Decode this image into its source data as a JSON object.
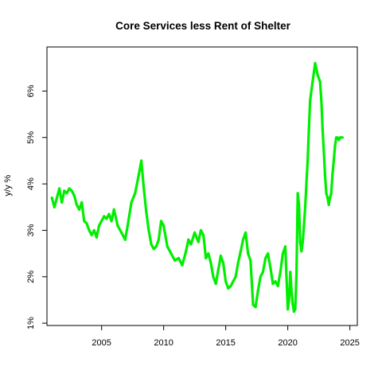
{
  "chart_data": {
    "type": "line",
    "title": "Core Services less Rent of Shelter",
    "xlabel": "",
    "ylabel": "y/y %",
    "xlim": [
      2000.6,
      2025.6
    ],
    "ylim": [
      0.95,
      6.95
    ],
    "x_ticks": [
      2005,
      2010,
      2015,
      2020,
      2025
    ],
    "x_tick_labels": [
      "2005",
      "2010",
      "2015",
      "2020",
      "2025"
    ],
    "y_ticks": [
      1,
      2,
      3,
      4,
      5,
      6
    ],
    "y_tick_labels": [
      "1%",
      "2%",
      "3%",
      "4%",
      "5%",
      "6%"
    ],
    "grid": false,
    "legend": "none",
    "colors": {
      "line": "#00ee00",
      "frame": "#000000"
    },
    "series": [
      {
        "x": [
          2001.0,
          2001.2,
          2001.4,
          2001.6,
          2001.8,
          2002.0,
          2002.2,
          2002.4,
          2002.6,
          2002.8,
          2003.0,
          2003.2,
          2003.4,
          2003.6,
          2003.8,
          2004.0,
          2004.2,
          2004.4,
          2004.6,
          2004.8,
          2005.0,
          2005.2,
          2005.4,
          2005.6,
          2005.8,
          2006.0,
          2006.3,
          2006.6,
          2006.9,
          2007.1,
          2007.4,
          2007.7,
          2008.0,
          2008.2,
          2008.4,
          2008.6,
          2008.8,
          2009.0,
          2009.2,
          2009.4,
          2009.6,
          2009.8,
          2010.0,
          2010.3,
          2010.6,
          2010.9,
          2011.2,
          2011.5,
          2011.8,
          2012.0,
          2012.2,
          2012.5,
          2012.8,
          2013.0,
          2013.2,
          2013.4,
          2013.6,
          2013.8,
          2014.0,
          2014.2,
          2014.4,
          2014.6,
          2014.8,
          2015.0,
          2015.2,
          2015.4,
          2015.6,
          2015.8,
          2016.0,
          2016.2,
          2016.4,
          2016.6,
          2016.8,
          2017.0,
          2017.2,
          2017.4,
          2017.6,
          2017.8,
          2018.0,
          2018.2,
          2018.4,
          2018.6,
          2018.8,
          2019.0,
          2019.2,
          2019.4,
          2019.6,
          2019.8,
          2020.0,
          2020.1,
          2020.2,
          2020.3,
          2020.4,
          2020.5,
          2020.6,
          2020.7,
          2020.8,
          2020.9,
          2021.0,
          2021.1,
          2021.2,
          2021.3,
          2021.4,
          2021.5,
          2021.6,
          2021.7,
          2021.8,
          2022.0,
          2022.2,
          2022.4,
          2022.6,
          2022.7,
          2022.8,
          2022.9,
          2023.0,
          2023.1,
          2023.2,
          2023.3,
          2023.4,
          2023.5,
          2023.6,
          2023.7,
          2023.8,
          2023.9,
          2024.0,
          2024.1,
          2024.2,
          2024.3,
          2024.4
        ],
        "y": [
          3.7,
          3.5,
          3.7,
          3.9,
          3.6,
          3.85,
          3.8,
          3.9,
          3.85,
          3.75,
          3.55,
          3.45,
          3.6,
          3.2,
          3.15,
          3.0,
          2.9,
          3.0,
          2.85,
          3.1,
          3.2,
          3.3,
          3.25,
          3.35,
          3.2,
          3.45,
          3.1,
          2.95,
          2.8,
          3.1,
          3.6,
          3.8,
          4.2,
          4.5,
          3.9,
          3.4,
          3.0,
          2.7,
          2.6,
          2.65,
          2.8,
          3.2,
          3.1,
          2.65,
          2.5,
          2.35,
          2.4,
          2.25,
          2.55,
          2.8,
          2.7,
          2.95,
          2.75,
          3.0,
          2.9,
          2.4,
          2.5,
          2.3,
          2.0,
          1.85,
          2.15,
          2.45,
          2.3,
          1.9,
          1.75,
          1.8,
          1.9,
          2.0,
          2.3,
          2.55,
          2.8,
          2.95,
          2.5,
          2.35,
          1.4,
          1.35,
          1.7,
          2.0,
          2.1,
          2.4,
          2.5,
          2.2,
          1.85,
          1.9,
          1.8,
          2.1,
          2.5,
          2.65,
          1.3,
          1.5,
          2.1,
          1.7,
          1.4,
          1.25,
          1.3,
          2.1,
          3.8,
          3.55,
          2.75,
          2.55,
          2.75,
          3.1,
          3.5,
          4.0,
          4.5,
          5.2,
          5.8,
          6.2,
          6.6,
          6.35,
          6.2,
          5.8,
          5.2,
          4.7,
          4.2,
          3.8,
          3.7,
          3.55,
          3.7,
          3.8,
          4.2,
          4.5,
          4.8,
          5.0,
          5.0,
          4.95,
          5.0,
          5.0,
          5.0
        ]
      }
    ]
  }
}
